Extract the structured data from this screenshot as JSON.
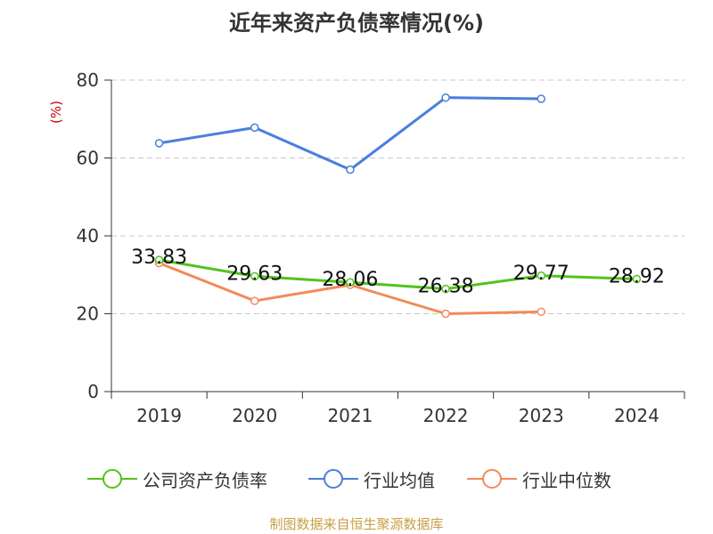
{
  "chart_data": {
    "type": "line",
    "title": "近年来资产负债率情况(%)",
    "ylabel": "(%)",
    "ylim": [
      0,
      80
    ],
    "yticks": [
      0,
      20,
      40,
      60,
      80
    ],
    "grid": true,
    "legend_position": "bottom",
    "categories": [
      "2019",
      "2020",
      "2021",
      "2022",
      "2023",
      "2024"
    ],
    "series": [
      {
        "name": "公司资产负债率",
        "color": "#52c41a",
        "values": [
          33.83,
          29.63,
          28.06,
          26.38,
          29.77,
          28.92
        ],
        "labels": [
          "33.83",
          "29.63",
          "28.06",
          "26.38",
          "29.77",
          "28.92"
        ]
      },
      {
        "name": "行业均值",
        "color": "#4a7fdc",
        "values": [
          63.8,
          67.8,
          57.0,
          75.5,
          75.2,
          null
        ]
      },
      {
        "name": "行业中位数",
        "color": "#f28a5a",
        "values": [
          33.0,
          23.3,
          27.4,
          20.0,
          20.5,
          null
        ]
      }
    ]
  },
  "source_note": "制图数据来自恒生聚源数据库"
}
